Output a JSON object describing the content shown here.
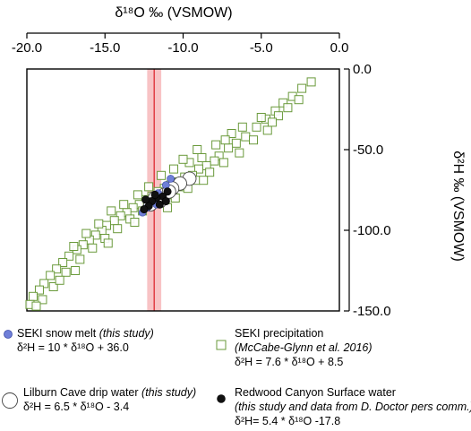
{
  "chart_data": {
    "type": "scatter",
    "title": "",
    "xlabel": "δ¹⁸O ‰ (VSMOW)",
    "ylabel": "δ²H ‰ (VSMOW)",
    "xlim": [
      -20,
      0
    ],
    "ylim": [
      -150,
      0
    ],
    "x_ticks": [
      "-20.0",
      "-15.0",
      "-10.0",
      "-5.0",
      "0.0"
    ],
    "y_ticks": [
      "0.0",
      "-50.0",
      "-100.0",
      "-150.0"
    ],
    "x_axis_position": "top",
    "y_axis_position": "right",
    "grid": false,
    "highlight_band": {
      "x_center": -11.85,
      "x_range": [
        -12.3,
        -11.4
      ],
      "color": "#f7b8bb",
      "line_color": "#e0353d"
    },
    "series": [
      {
        "name": "SEKI snow melt",
        "marker": "filled-circle",
        "color": "#6f7fd8",
        "points": [
          [
            -10.8,
            -68
          ],
          [
            -11.1,
            -72
          ],
          [
            -11.6,
            -77
          ],
          [
            -12.0,
            -82
          ],
          [
            -12.3,
            -86
          ],
          [
            -11.7,
            -84
          ],
          [
            -12.6,
            -89
          ]
        ]
      },
      {
        "name": "SEKI precipitation",
        "marker": "open-square",
        "color": "#6a9a3b",
        "points": [
          [
            -1.8,
            -8
          ],
          [
            -2.4,
            -12
          ],
          [
            -3.0,
            -17
          ],
          [
            -3.6,
            -21
          ],
          [
            -2.6,
            -19
          ],
          [
            -4.1,
            -26
          ],
          [
            -4.7,
            -31
          ],
          [
            -3.9,
            -29
          ],
          [
            -5.3,
            -36
          ],
          [
            -4.6,
            -38
          ],
          [
            -6.0,
            -42
          ],
          [
            -5.5,
            -44
          ],
          [
            -6.6,
            -46
          ],
          [
            -7.1,
            -49
          ],
          [
            -6.4,
            -52
          ],
          [
            -7.7,
            -54
          ],
          [
            -8.0,
            -57
          ],
          [
            -7.4,
            -58
          ],
          [
            -8.5,
            -60
          ],
          [
            -9.0,
            -62
          ],
          [
            -8.3,
            -64
          ],
          [
            -9.4,
            -66
          ],
          [
            -9.9,
            -67
          ],
          [
            -9.2,
            -69
          ],
          [
            -10.3,
            -70
          ],
          [
            -10.8,
            -72
          ],
          [
            -10.1,
            -73
          ],
          [
            -11.2,
            -74
          ],
          [
            -11.6,
            -76
          ],
          [
            -10.9,
            -78
          ],
          [
            -12.0,
            -79
          ],
          [
            -12.4,
            -81
          ],
          [
            -11.8,
            -82
          ],
          [
            -12.8,
            -84
          ],
          [
            -13.2,
            -86
          ],
          [
            -12.6,
            -88
          ],
          [
            -13.6,
            -89
          ],
          [
            -14.0,
            -91
          ],
          [
            -13.4,
            -93
          ],
          [
            -14.4,
            -94
          ],
          [
            -14.9,
            -97
          ],
          [
            -14.2,
            -99
          ],
          [
            -15.2,
            -100
          ],
          [
            -15.6,
            -103
          ],
          [
            -15.0,
            -105
          ],
          [
            -16.0,
            -106
          ],
          [
            -16.4,
            -109
          ],
          [
            -15.8,
            -111
          ],
          [
            -16.8,
            -112
          ],
          [
            -17.3,
            -116
          ],
          [
            -16.6,
            -118
          ],
          [
            -17.7,
            -120
          ],
          [
            -18.1,
            -124
          ],
          [
            -17.5,
            -126
          ],
          [
            -18.5,
            -128
          ],
          [
            -18.9,
            -133
          ],
          [
            -18.3,
            -135
          ],
          [
            -19.2,
            -137
          ],
          [
            -19.6,
            -141
          ],
          [
            -19.0,
            -143
          ],
          [
            -19.8,
            -146
          ],
          [
            -19.4,
            -147
          ],
          [
            -9.6,
            -58
          ],
          [
            -8.8,
            -55
          ],
          [
            -10.6,
            -62
          ],
          [
            -7.9,
            -47
          ],
          [
            -6.9,
            -40
          ],
          [
            -12.9,
            -78
          ],
          [
            -13.8,
            -84
          ],
          [
            -14.6,
            -88
          ],
          [
            -11.4,
            -66
          ],
          [
            -9.7,
            -74
          ],
          [
            -10.5,
            -80
          ],
          [
            -8.7,
            -69
          ],
          [
            -12.2,
            -73
          ],
          [
            -13.1,
            -95
          ],
          [
            -15.4,
            -96
          ],
          [
            -16.2,
            -102
          ],
          [
            -17.0,
            -110
          ],
          [
            -5.0,
            -30
          ],
          [
            -3.3,
            -24
          ],
          [
            -6.2,
            -36
          ],
          [
            -7.3,
            -44
          ],
          [
            -11.0,
            -86
          ],
          [
            -14.8,
            -108
          ],
          [
            -17.9,
            -131
          ],
          [
            -16.9,
            -125
          ],
          [
            -4.3,
            -33
          ],
          [
            -9.1,
            -50
          ],
          [
            -10.0,
            -56
          ]
        ]
      },
      {
        "name": "Lilburn Cave drip water",
        "marker": "open-circle",
        "color": "#444444",
        "points": [
          [
            -9.6,
            -68
          ],
          [
            -10.2,
            -71
          ],
          [
            -10.7,
            -74
          ],
          [
            -11.2,
            -78
          ],
          [
            -11.8,
            -80
          ],
          [
            -12.1,
            -84
          ],
          [
            -10.9,
            -76
          ],
          [
            -11.5,
            -82
          ]
        ]
      },
      {
        "name": "Redwood Canyon Surface water",
        "marker": "filled-circle",
        "color": "#111111",
        "points": [
          [
            -11.0,
            -76
          ],
          [
            -11.3,
            -79
          ],
          [
            -11.7,
            -80
          ],
          [
            -12.0,
            -82
          ],
          [
            -12.2,
            -85
          ],
          [
            -11.5,
            -84
          ],
          [
            -12.5,
            -87
          ],
          [
            -11.1,
            -82
          ],
          [
            -11.8,
            -78
          ],
          [
            -12.4,
            -81
          ]
        ]
      }
    ]
  },
  "legend": {
    "snow": {
      "title": "SEKI snow melt",
      "note": "(this study)",
      "equation": "δ²H = 10 * δ¹⁸O + 36.0"
    },
    "precip": {
      "title": "SEKI precipitation",
      "note": "(McCabe-Glynn et al. 2016)",
      "equation": "δ²H = 7.6 * δ¹⁸O + 8.5"
    },
    "drip": {
      "title": "Lilburn Cave drip water",
      "note": "(this study)",
      "equation": "δ²H = 6.5 * δ¹⁸O - 3.4"
    },
    "redwood": {
      "title": "Redwood Canyon Surface water",
      "note": "(this study and data from D. Doctor pers comm.)",
      "equation": "δ²H= 5.4 * δ¹⁸O -17.8"
    }
  }
}
